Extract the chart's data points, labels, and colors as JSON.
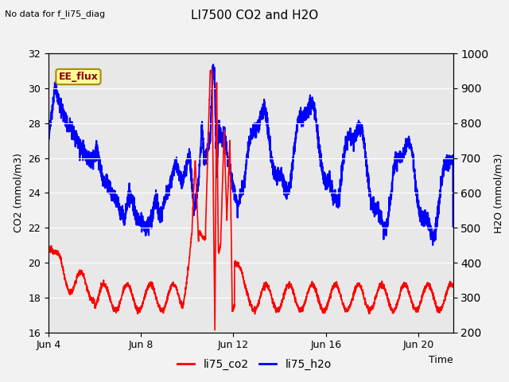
{
  "title": "LI7500 CO2 and H2O",
  "subtitle": "No data for f_li75_diag",
  "xlabel": "Time",
  "ylabel_left": "CO2 (mmol/m3)",
  "ylabel_right": "H2O (mmol/m3)",
  "legend_label": "EE_flux",
  "series_labels": [
    "li75_co2",
    "li75_h2o"
  ],
  "series_colors": [
    "red",
    "blue"
  ],
  "ylim_left": [
    16,
    32
  ],
  "ylim_right": [
    200,
    1000
  ],
  "yticks_left": [
    16,
    18,
    20,
    22,
    24,
    26,
    28,
    30,
    32
  ],
  "yticks_right": [
    200,
    300,
    400,
    500,
    600,
    700,
    800,
    900,
    1000
  ],
  "xtick_labels": [
    "Jun 4",
    "Jun 8",
    "Jun 12",
    "Jun 16",
    "Jun 20"
  ],
  "xtick_positions": [
    0,
    4,
    8,
    12,
    16
  ],
  "xlim": [
    0,
    17.5
  ],
  "bg_color": "#e8e8e8",
  "fig_bg": "#f2f2f2",
  "co2_color": "red",
  "h2o_color": "blue",
  "co2_lw": 1.2,
  "h2o_lw": 1.5,
  "grid_color": "white",
  "grid_lw": 0.8
}
